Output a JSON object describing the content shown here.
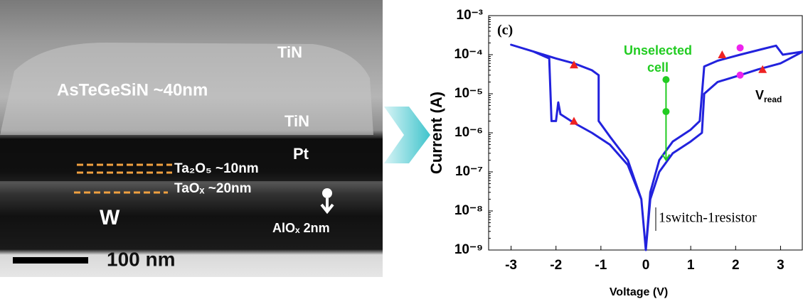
{
  "image": {
    "labels": [
      "TiN",
      "AsTeGeSiN ~40nm",
      "TiN",
      "Pt",
      "Ta₂O₅ ~10nm",
      "TaOₓ ~20nm",
      "W",
      "AlOₓ 2nm"
    ],
    "scale_bar": "100 nm"
  },
  "chart_data": {
    "type": "line",
    "panel_label": "(c)",
    "x_label": "Voltage (V)",
    "y_label": "Current (A)",
    "y_scale": "log",
    "xlim": [
      -3.5,
      3.5
    ],
    "xticks": [
      -3,
      -2,
      -1,
      0,
      1,
      2,
      3
    ],
    "ylim": [
      1e-09,
      0.001
    ],
    "yticks": [
      {
        "value": 1e-09,
        "label": "10⁻⁹"
      },
      {
        "value": 1e-08,
        "label": "10⁻⁸"
      },
      {
        "value": 1e-07,
        "label": "10⁻⁷"
      },
      {
        "value": 1e-06,
        "label": "10⁻⁶"
      },
      {
        "value": 1e-05,
        "label": "10⁻⁵"
      },
      {
        "value": 0.0001,
        "label": "10⁻⁴"
      },
      {
        "value": 0.001,
        "label": "10⁻³"
      }
    ],
    "series": [
      {
        "color": "#2222dd",
        "x": [
          0,
          0.1,
          0.3,
          0.6,
          1.0,
          1.2,
          1.3,
          1.6,
          2.1,
          2.6,
          2.9,
          3.05,
          3.5,
          3.0,
          2.5,
          2.1,
          1.6,
          1.3,
          1.25,
          1.0,
          0.6,
          0.3,
          0.1,
          0,
          -0.1,
          -0.4,
          -0.8,
          -1.2,
          -1.6,
          -1.9,
          -1.95,
          -2.0,
          -2.1,
          -2.15,
          -2.5,
          -3.0,
          -2.5,
          -2.0,
          -1.6,
          -1.2,
          -1.05,
          -1.05,
          -0.8,
          -0.4,
          -0.1,
          0
        ],
        "values": [
          1e-09,
          3e-08,
          2e-07,
          6e-07,
          1.2e-06,
          2e-06,
          5e-05,
          7e-05,
          0.0001,
          0.00014,
          0.00017,
          0.0001,
          0.00012,
          6e-05,
          4.2e-05,
          3e-05,
          2e-05,
          1e-05,
          1e-06,
          6e-07,
          3e-07,
          1e-07,
          2e-08,
          1e-09,
          2e-08,
          1.5e-07,
          5e-07,
          1e-06,
          1.8e-06,
          3e-06,
          6e-06,
          2e-06,
          2e-06,
          8e-05,
          0.00012,
          0.00018,
          0.00012,
          8e-05,
          6e-05,
          4e-05,
          3e-05,
          2e-06,
          8e-07,
          2e-07,
          2e-08,
          1e-09
        ]
      }
    ],
    "direction_markers": {
      "color": "#ee2222",
      "x": [
        -1.6,
        -1.6,
        1.7,
        2.6
      ],
      "values": [
        5.5e-05,
        2e-06,
        0.0001,
        4.2e-05
      ]
    },
    "read_points": {
      "color": "#ee22ee",
      "x": [
        2.1,
        2.1
      ],
      "values": [
        0.00015,
        3e-05
      ]
    },
    "unselected_points": {
      "color": "#22cc22",
      "x": [
        0.45,
        0.45
      ],
      "values": [
        2.3e-05,
        3.5e-06
      ],
      "arrow_to": 2e-07
    },
    "annotations": [
      "Unselected",
      "cell",
      "1switch-1resistor"
    ],
    "vread_label": {
      "main": "V",
      "sub": "read"
    }
  }
}
